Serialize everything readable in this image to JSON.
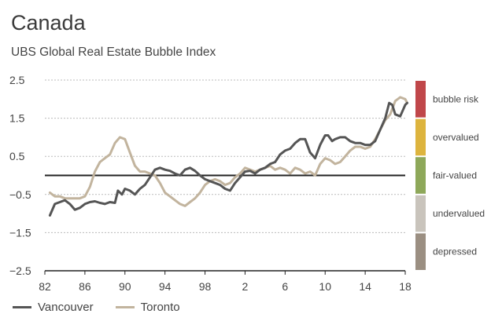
{
  "chart_data": {
    "type": "line",
    "title": "Canada",
    "subtitle": "UBS Global Real Estate Bubble Index",
    "xlabel": "",
    "ylabel": "",
    "xlim": [
      1982,
      2018
    ],
    "ylim": [
      -2.5,
      2.5
    ],
    "y_ticks": [
      2.5,
      1.5,
      0.5,
      -0.5,
      -1.5,
      -2.5
    ],
    "x_ticks": [
      82,
      86,
      90,
      94,
      98,
      2,
      6,
      10,
      14,
      18
    ],
    "series": [
      {
        "name": "Vancouver",
        "color": "#555555",
        "points": [
          [
            1982.5,
            -1.05
          ],
          [
            1983,
            -0.75
          ],
          [
            1983.5,
            -0.7
          ],
          [
            1984,
            -0.65
          ],
          [
            1984.5,
            -0.75
          ],
          [
            1985,
            -0.9
          ],
          [
            1985.5,
            -0.85
          ],
          [
            1986,
            -0.75
          ],
          [
            1986.5,
            -0.7
          ],
          [
            1987,
            -0.68
          ],
          [
            1987.5,
            -0.72
          ],
          [
            1988,
            -0.75
          ],
          [
            1988.5,
            -0.7
          ],
          [
            1989,
            -0.72
          ],
          [
            1989.3,
            -0.4
          ],
          [
            1989.7,
            -0.5
          ],
          [
            1990,
            -0.35
          ],
          [
            1990.5,
            -0.4
          ],
          [
            1991,
            -0.5
          ],
          [
            1991.5,
            -0.35
          ],
          [
            1992,
            -0.25
          ],
          [
            1992.5,
            -0.05
          ],
          [
            1993,
            0.15
          ],
          [
            1993.5,
            0.2
          ],
          [
            1994,
            0.15
          ],
          [
            1994.5,
            0.12
          ],
          [
            1995,
            0.05
          ],
          [
            1995.5,
            0.0
          ],
          [
            1996,
            0.15
          ],
          [
            1996.5,
            0.2
          ],
          [
            1997,
            0.12
          ],
          [
            1997.5,
            0.0
          ],
          [
            1998,
            -0.1
          ],
          [
            1998.5,
            -0.15
          ],
          [
            1999,
            -0.2
          ],
          [
            1999.5,
            -0.25
          ],
          [
            2000,
            -0.35
          ],
          [
            2000.5,
            -0.4
          ],
          [
            2001,
            -0.2
          ],
          [
            2001.5,
            -0.05
          ],
          [
            2002,
            0.1
          ],
          [
            2002.5,
            0.12
          ],
          [
            2003,
            0.05
          ],
          [
            2003.5,
            0.15
          ],
          [
            2004,
            0.2
          ],
          [
            2004.5,
            0.3
          ],
          [
            2005,
            0.35
          ],
          [
            2005.5,
            0.55
          ],
          [
            2006,
            0.65
          ],
          [
            2006.5,
            0.7
          ],
          [
            2007,
            0.85
          ],
          [
            2007.5,
            0.95
          ],
          [
            2008,
            0.95
          ],
          [
            2008.5,
            0.6
          ],
          [
            2009,
            0.45
          ],
          [
            2009.5,
            0.8
          ],
          [
            2010,
            1.05
          ],
          [
            2010.3,
            1.05
          ],
          [
            2010.7,
            0.9
          ],
          [
            2011,
            0.95
          ],
          [
            2011.5,
            1.0
          ],
          [
            2012,
            1.0
          ],
          [
            2012.5,
            0.9
          ],
          [
            2013,
            0.85
          ],
          [
            2013.5,
            0.85
          ],
          [
            2014,
            0.8
          ],
          [
            2014.5,
            0.8
          ],
          [
            2015,
            0.9
          ],
          [
            2015.5,
            1.2
          ],
          [
            2016,
            1.5
          ],
          [
            2016.4,
            1.9
          ],
          [
            2016.7,
            1.85
          ],
          [
            2017,
            1.6
          ],
          [
            2017.5,
            1.55
          ],
          [
            2018,
            1.85
          ],
          [
            2018.2,
            1.9
          ]
        ]
      },
      {
        "name": "Toronto",
        "color": "#c2b49e",
        "points": [
          [
            1982.5,
            -0.45
          ],
          [
            1983,
            -0.55
          ],
          [
            1983.5,
            -0.55
          ],
          [
            1984,
            -0.6
          ],
          [
            1984.5,
            -0.6
          ],
          [
            1985,
            -0.6
          ],
          [
            1985.5,
            -0.6
          ],
          [
            1986,
            -0.55
          ],
          [
            1986.5,
            -0.3
          ],
          [
            1987,
            0.1
          ],
          [
            1987.5,
            0.35
          ],
          [
            1988,
            0.45
          ],
          [
            1988.5,
            0.55
          ],
          [
            1989,
            0.85
          ],
          [
            1989.5,
            1.0
          ],
          [
            1990,
            0.95
          ],
          [
            1990.5,
            0.6
          ],
          [
            1991,
            0.25
          ],
          [
            1991.5,
            0.1
          ],
          [
            1992,
            0.1
          ],
          [
            1992.5,
            0.05
          ],
          [
            1993,
            0.0
          ],
          [
            1993.5,
            -0.2
          ],
          [
            1994,
            -0.45
          ],
          [
            1994.5,
            -0.55
          ],
          [
            1995,
            -0.65
          ],
          [
            1995.5,
            -0.75
          ],
          [
            1996,
            -0.8
          ],
          [
            1996.5,
            -0.7
          ],
          [
            1997,
            -0.6
          ],
          [
            1997.5,
            -0.45
          ],
          [
            1998,
            -0.25
          ],
          [
            1998.5,
            -0.15
          ],
          [
            1999,
            -0.1
          ],
          [
            1999.5,
            -0.15
          ],
          [
            2000,
            -0.25
          ],
          [
            2000.5,
            -0.2
          ],
          [
            2001,
            -0.05
          ],
          [
            2001.5,
            0.05
          ],
          [
            2002,
            0.2
          ],
          [
            2002.5,
            0.15
          ],
          [
            2003,
            0.1
          ],
          [
            2003.5,
            0.15
          ],
          [
            2004,
            0.2
          ],
          [
            2004.5,
            0.25
          ],
          [
            2005,
            0.15
          ],
          [
            2005.5,
            0.2
          ],
          [
            2006,
            0.15
          ],
          [
            2006.5,
            0.05
          ],
          [
            2007,
            0.2
          ],
          [
            2007.5,
            0.15
          ],
          [
            2008,
            0.05
          ],
          [
            2008.5,
            0.1
          ],
          [
            2009,
            0.0
          ],
          [
            2009.5,
            0.3
          ],
          [
            2010,
            0.45
          ],
          [
            2010.5,
            0.4
          ],
          [
            2011,
            0.3
          ],
          [
            2011.5,
            0.35
          ],
          [
            2012,
            0.5
          ],
          [
            2012.5,
            0.65
          ],
          [
            2013,
            0.75
          ],
          [
            2013.5,
            0.75
          ],
          [
            2014,
            0.7
          ],
          [
            2014.5,
            0.75
          ],
          [
            2015,
            0.95
          ],
          [
            2015.5,
            1.2
          ],
          [
            2016,
            1.45
          ],
          [
            2016.5,
            1.6
          ],
          [
            2017,
            1.95
          ],
          [
            2017.5,
            2.05
          ],
          [
            2018,
            2.0
          ],
          [
            2018.2,
            1.9
          ]
        ]
      }
    ],
    "bands": [
      {
        "label": "bubble risk",
        "from": 1.5,
        "to": 2.5,
        "color": "#c0474a"
      },
      {
        "label": "overvalued",
        "from": 0.5,
        "to": 1.5,
        "color": "#ddb43e"
      },
      {
        "label": "fair-valued",
        "from": -0.5,
        "to": 0.5,
        "color": "#8ea85a"
      },
      {
        "label": "undervalued",
        "from": -1.5,
        "to": -0.5,
        "color": "#c9c4bc"
      },
      {
        "label": "depressed",
        "from": -2.5,
        "to": -1.5,
        "color": "#9b8f82"
      }
    ],
    "reference_line": 0.0
  }
}
